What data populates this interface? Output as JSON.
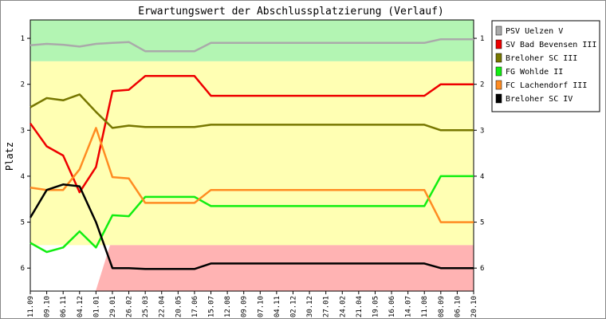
{
  "chart_data": {
    "type": "line",
    "title": "Erwartungswert der Abschlussplatzierung (Verlauf)",
    "ylabel": "Platz",
    "xlabel": "",
    "ylim": [
      0.6,
      6.5
    ],
    "y_ticks": [
      1,
      2,
      3,
      4,
      5,
      6
    ],
    "y_inverted": true,
    "grid": false,
    "legend_position": "right",
    "bands": [
      {
        "from": 0.6,
        "to": 1.5,
        "color": "#b3f5b3"
      },
      {
        "from": 1.5,
        "to": 5.5,
        "color": "#ffffb3"
      },
      {
        "region": "lower-right",
        "from": 5.5,
        "to": 6.5,
        "color": "#ffb3b3"
      }
    ],
    "x": [
      "11.09",
      "09.10",
      "06.11",
      "04.12",
      "01.01",
      "29.01",
      "26.02",
      "25.03",
      "22.04",
      "20.05",
      "17.06",
      "15.07",
      "12.08",
      "09.09",
      "07.10",
      "04.11",
      "02.12",
      "30.12",
      "27.01",
      "24.02",
      "21.04",
      "19.05",
      "16.06",
      "14.07",
      "11.08",
      "08.09",
      "06.10",
      "20.10"
    ],
    "series": [
      {
        "name": "PSV Uelzen V",
        "color": "#aaaaaa",
        "values": [
          1.15,
          1.12,
          1.14,
          1.18,
          1.12,
          1.1,
          1.08,
          1.28,
          1.28,
          1.28,
          1.28,
          1.1,
          1.1,
          1.1,
          1.1,
          1.1,
          1.1,
          1.1,
          1.1,
          1.1,
          1.1,
          1.1,
          1.1,
          1.1,
          1.1,
          1.02,
          1.02,
          1.02
        ]
      },
      {
        "name": "SV Bad Bevensen III",
        "color": "#ee0000",
        "values": [
          2.85,
          3.35,
          3.55,
          4.35,
          3.8,
          2.15,
          2.12,
          1.82,
          1.82,
          1.82,
          1.82,
          2.25,
          2.25,
          2.25,
          2.25,
          2.25,
          2.25,
          2.25,
          2.25,
          2.25,
          2.25,
          2.25,
          2.25,
          2.25,
          2.25,
          2.0,
          2.0,
          2.0
        ]
      },
      {
        "name": "Breloher SC III",
        "color": "#777700",
        "values": [
          2.5,
          2.3,
          2.35,
          2.22,
          2.6,
          2.95,
          2.9,
          2.93,
          2.93,
          2.93,
          2.93,
          2.88,
          2.88,
          2.88,
          2.88,
          2.88,
          2.88,
          2.88,
          2.88,
          2.88,
          2.88,
          2.88,
          2.88,
          2.88,
          2.88,
          3.0,
          3.0,
          3.0
        ]
      },
      {
        "name": "FG Wohlde II",
        "color": "#11ee11",
        "values": [
          5.45,
          5.65,
          5.55,
          5.2,
          5.55,
          4.85,
          4.87,
          4.45,
          4.45,
          4.45,
          4.45,
          4.65,
          4.65,
          4.65,
          4.65,
          4.65,
          4.65,
          4.65,
          4.65,
          4.65,
          4.65,
          4.65,
          4.65,
          4.65,
          4.65,
          4.0,
          4.0,
          4.0
        ]
      },
      {
        "name": "FC Lachendorf III",
        "color": "#ff8c22",
        "values": [
          4.25,
          4.3,
          4.3,
          3.85,
          2.95,
          4.02,
          4.05,
          4.58,
          4.58,
          4.58,
          4.58,
          4.3,
          4.3,
          4.3,
          4.3,
          4.3,
          4.3,
          4.3,
          4.3,
          4.3,
          4.3,
          4.3,
          4.3,
          4.3,
          4.3,
          5.0,
          5.0,
          5.0
        ]
      },
      {
        "name": "Breloher SC IV",
        "color": "#000000",
        "values": [
          4.9,
          4.3,
          4.18,
          4.22,
          5.0,
          6.0,
          6.0,
          6.02,
          6.02,
          6.02,
          6.02,
          5.9,
          5.9,
          5.9,
          5.9,
          5.9,
          5.9,
          5.9,
          5.9,
          5.9,
          5.9,
          5.9,
          5.9,
          5.9,
          5.9,
          6.0,
          6.0,
          6.0
        ]
      }
    ]
  }
}
